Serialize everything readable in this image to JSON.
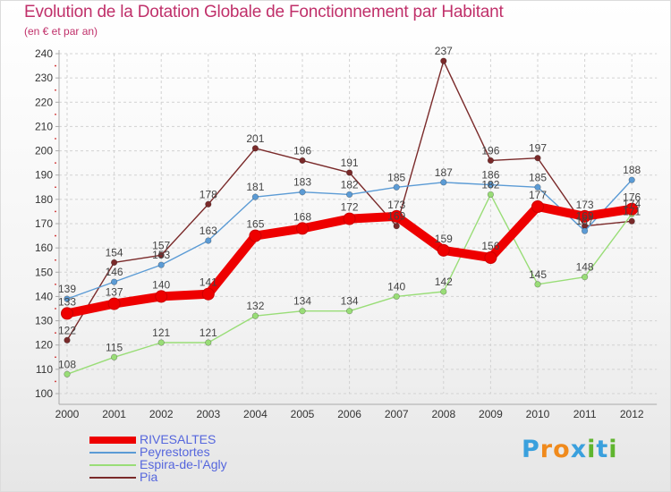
{
  "title": "Evolution de la Dotation Globale de Fonctionnement par Habitant",
  "subtitle": "(en € et par an)",
  "brand": {
    "text": "Proxiti",
    "letter_colors": [
      "#3aa0dd",
      "#f08a1c",
      "#f08a1c",
      "#3aa0dd",
      "#5fb52e",
      "#3aa0dd",
      "#5fb52e"
    ]
  },
  "chart_data": {
    "type": "line",
    "title": "Evolution de la Dotation Globale de Fonctionnement par Habitant",
    "ylabel": "(en € et par an)",
    "xlabel": "",
    "x": [
      "2000",
      "2001",
      "2002",
      "2003",
      "2004",
      "2005",
      "2006",
      "2007",
      "2008",
      "2009",
      "2010",
      "2011",
      "2012"
    ],
    "ylim": [
      100,
      240
    ],
    "yticks": [
      100,
      110,
      120,
      130,
      140,
      150,
      160,
      170,
      180,
      190,
      200,
      210,
      220,
      230,
      240
    ],
    "grid": true,
    "legend": "bottom-left",
    "series": [
      {
        "name": "RIVESALTES",
        "color": "#ee0000",
        "values": [
          133,
          137,
          140,
          141,
          165,
          168,
          172,
          173,
          159,
          156,
          177,
          173,
          176
        ],
        "labels": [
          "133",
          "137",
          "140",
          "141",
          "165",
          "168",
          "172",
          "173",
          "159",
          "156",
          "177",
          "173",
          "176"
        ]
      },
      {
        "name": "Peyrestortes",
        "color": "#5b9bd5",
        "values": [
          139,
          146,
          153,
          163,
          181,
          183,
          182,
          185,
          187,
          186,
          185,
          167,
          188
        ],
        "labels": [
          "139",
          "146",
          "153",
          "163",
          "181",
          "183",
          "182",
          "185",
          "187",
          "186",
          "185",
          "167",
          "188"
        ]
      },
      {
        "name": "Espira-de-l'Agly",
        "color": "#99dd77",
        "values": [
          108,
          115,
          121,
          121,
          132,
          134,
          134,
          140,
          142,
          182,
          145,
          148,
          174
        ],
        "labels": [
          "108",
          "115",
          "121",
          "121",
          "132",
          "134",
          "134",
          "140",
          "142",
          "182",
          "145",
          "148",
          "174"
        ]
      },
      {
        "name": "Pia",
        "color": "#7a2a2a",
        "values": [
          122,
          154,
          157,
          178,
          201,
          196,
          191,
          169,
          237,
          196,
          197,
          169,
          171
        ],
        "labels": [
          "122",
          "154",
          "157",
          "178",
          "201",
          "196",
          "191",
          "169",
          "237",
          "196",
          "197",
          "169",
          "171"
        ]
      }
    ]
  }
}
